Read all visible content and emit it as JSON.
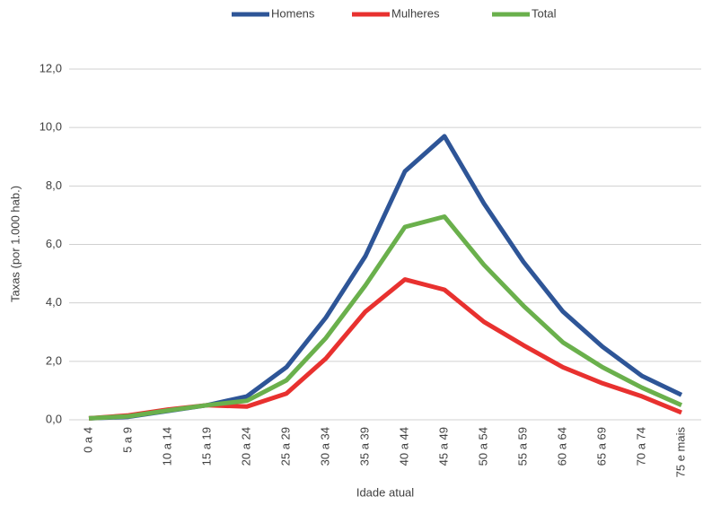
{
  "chart_data": {
    "type": "line",
    "y_label": "Taxas (por 1.000 hab.)",
    "x_label": "Idade atual",
    "categories": [
      "0 a 4",
      "5 a 9",
      "10 a 14",
      "15 a 19",
      "20 a 24",
      "25 a 29",
      "30 a 34",
      "35 a 39",
      "40 a 44",
      "45 a 49",
      "50 a 54",
      "55 a 59",
      "60 a 64",
      "65 a 69",
      "70 a 74",
      "75 e mais"
    ],
    "series": [
      {
        "name": "Homens",
        "color": "#2e5597",
        "values": [
          0.05,
          0.1,
          0.3,
          0.5,
          0.8,
          1.8,
          3.5,
          5.6,
          8.5,
          9.7,
          7.4,
          5.4,
          3.7,
          2.5,
          1.5,
          0.85
        ]
      },
      {
        "name": "Mulheres",
        "color": "#e8312f",
        "values": [
          0.05,
          0.15,
          0.35,
          0.5,
          0.45,
          0.9,
          2.1,
          3.7,
          4.8,
          4.45,
          3.35,
          2.55,
          1.8,
          1.25,
          0.8,
          0.25
        ]
      },
      {
        "name": "Total",
        "color": "#6ab04c",
        "values": [
          0.05,
          0.12,
          0.32,
          0.5,
          0.65,
          1.35,
          2.8,
          4.6,
          6.6,
          6.95,
          5.3,
          3.9,
          2.65,
          1.8,
          1.1,
          0.5
        ]
      }
    ],
    "ylim": [
      0,
      12
    ],
    "yticks": [
      {
        "value": 0,
        "label": "0,0"
      },
      {
        "value": 2,
        "label": "2,0"
      },
      {
        "value": 4,
        "label": "4,0"
      },
      {
        "value": 6,
        "label": "6,0"
      },
      {
        "value": 8,
        "label": "8,0"
      },
      {
        "value": 10,
        "label": "10,0"
      },
      {
        "value": 12,
        "label": "12,0"
      }
    ],
    "grid": true,
    "legend": "top"
  }
}
